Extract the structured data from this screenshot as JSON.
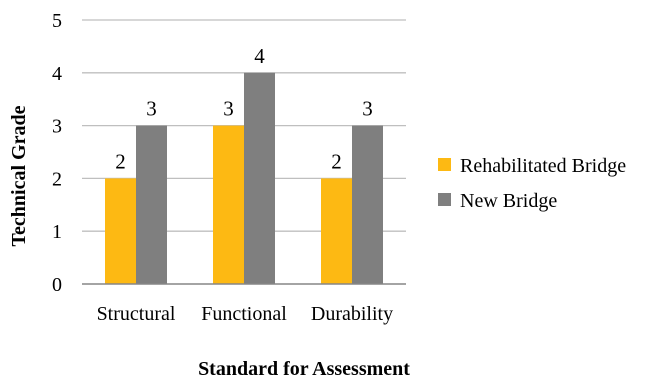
{
  "chart_data": {
    "type": "bar",
    "categories": [
      "Structural",
      "Functional",
      "Durability"
    ],
    "series": [
      {
        "name": "Rehabilitated Bridge",
        "values": [
          2,
          3,
          2
        ],
        "color": "#FDB913"
      },
      {
        "name": "New Bridge",
        "values": [
          3,
          4,
          3
        ],
        "color": "#7F7F7F"
      }
    ],
    "xlabel": "Standard for Assessment",
    "ylabel": "Technical Grade",
    "ylim": [
      0,
      5
    ],
    "yticks": [
      "0",
      "1",
      "2",
      "3",
      "4",
      "5"
    ],
    "grid": true,
    "data_labels": true,
    "legend_position": "right",
    "gridline_color": "#BFBFBF",
    "axis_color": "#868686"
  }
}
